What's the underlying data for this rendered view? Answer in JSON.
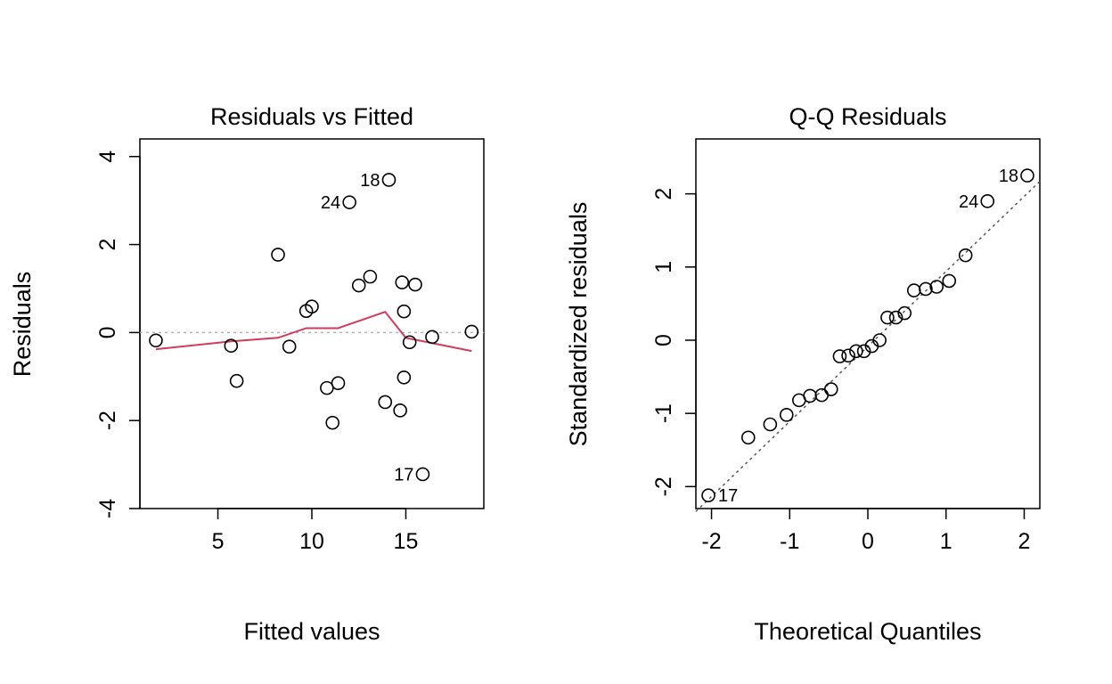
{
  "chart_data": [
    {
      "type": "scatter",
      "title": "Residuals vs Fitted",
      "xlabel": "Fitted values",
      "ylabel": "Residuals",
      "xlim": [
        0.85,
        19.15
      ],
      "ylim": [
        -4,
        4.4
      ],
      "xticks": [
        5,
        10,
        15
      ],
      "yticks": [
        -4,
        -2,
        0,
        2,
        4
      ],
      "reference_line": {
        "y": 0,
        "style": "dotted",
        "color": "#b3b3b3"
      },
      "smoother_color": "#d03b5e",
      "points": [
        {
          "x": 1.7,
          "y": -0.18
        },
        {
          "x": 5.7,
          "y": -0.3
        },
        {
          "x": 6.0,
          "y": -1.1
        },
        {
          "x": 8.2,
          "y": 1.77
        },
        {
          "x": 8.8,
          "y": -0.32
        },
        {
          "x": 9.7,
          "y": 0.49
        },
        {
          "x": 10.0,
          "y": 0.59
        },
        {
          "x": 10.8,
          "y": -1.26
        },
        {
          "x": 11.1,
          "y": -2.05
        },
        {
          "x": 11.4,
          "y": -1.15
        },
        {
          "x": 12.0,
          "y": 2.96,
          "label": "24"
        },
        {
          "x": 12.5,
          "y": 1.07
        },
        {
          "x": 13.1,
          "y": 1.27
        },
        {
          "x": 13.9,
          "y": -1.58
        },
        {
          "x": 14.1,
          "y": 3.47,
          "label": "18"
        },
        {
          "x": 14.7,
          "y": -1.77
        },
        {
          "x": 14.8,
          "y": 1.14
        },
        {
          "x": 14.9,
          "y": -1.02
        },
        {
          "x": 14.9,
          "y": 0.48
        },
        {
          "x": 15.2,
          "y": -0.22
        },
        {
          "x": 15.5,
          "y": 1.09
        },
        {
          "x": 15.9,
          "y": -3.22,
          "label": "17"
        },
        {
          "x": 16.4,
          "y": -0.1
        },
        {
          "x": 18.5,
          "y": 0.02
        }
      ],
      "smoother": {
        "x": [
          1.7,
          5.7,
          8.2,
          9.7,
          11.4,
          13.9,
          15.0,
          18.5
        ],
        "y": [
          -0.38,
          -0.2,
          -0.12,
          0.1,
          0.1,
          0.47,
          -0.12,
          -0.42
        ]
      },
      "grid": false
    },
    {
      "type": "scatter",
      "title": "Q-Q Residuals",
      "xlabel": "Theoretical Quantiles",
      "ylabel": "Standardized residuals",
      "xlim": [
        -2.2,
        2.2
      ],
      "ylim": [
        -2.3,
        2.75
      ],
      "xticks": [
        -2,
        -1,
        0,
        1,
        2
      ],
      "yticks": [
        -2,
        -1,
        0,
        1,
        2
      ],
      "reference_line": {
        "x": [
          -2.2,
          2.2
        ],
        "y": [
          -2.34,
          2.17
        ],
        "style": "dotted",
        "color": "#555555"
      },
      "points": [
        {
          "x": -2.04,
          "y": -2.12,
          "label": "17"
        },
        {
          "x": -1.53,
          "y": -1.33
        },
        {
          "x": -1.25,
          "y": -1.15
        },
        {
          "x": -1.04,
          "y": -1.02
        },
        {
          "x": -0.88,
          "y": -0.82
        },
        {
          "x": -0.74,
          "y": -0.76
        },
        {
          "x": -0.59,
          "y": -0.75
        },
        {
          "x": -0.47,
          "y": -0.67
        },
        {
          "x": -0.36,
          "y": -0.22
        },
        {
          "x": -0.25,
          "y": -0.21
        },
        {
          "x": -0.15,
          "y": -0.15
        },
        {
          "x": -0.05,
          "y": -0.15
        },
        {
          "x": 0.05,
          "y": -0.08
        },
        {
          "x": 0.15,
          "y": 0.0
        },
        {
          "x": 0.25,
          "y": 0.31
        },
        {
          "x": 0.36,
          "y": 0.31
        },
        {
          "x": 0.47,
          "y": 0.37
        },
        {
          "x": 0.59,
          "y": 0.68
        },
        {
          "x": 0.74,
          "y": 0.7
        },
        {
          "x": 0.88,
          "y": 0.73
        },
        {
          "x": 1.04,
          "y": 0.81
        },
        {
          "x": 1.25,
          "y": 1.16
        },
        {
          "x": 1.53,
          "y": 1.9,
          "label": "24"
        },
        {
          "x": 2.04,
          "y": 2.25,
          "label": "18"
        }
      ],
      "grid": false
    }
  ]
}
